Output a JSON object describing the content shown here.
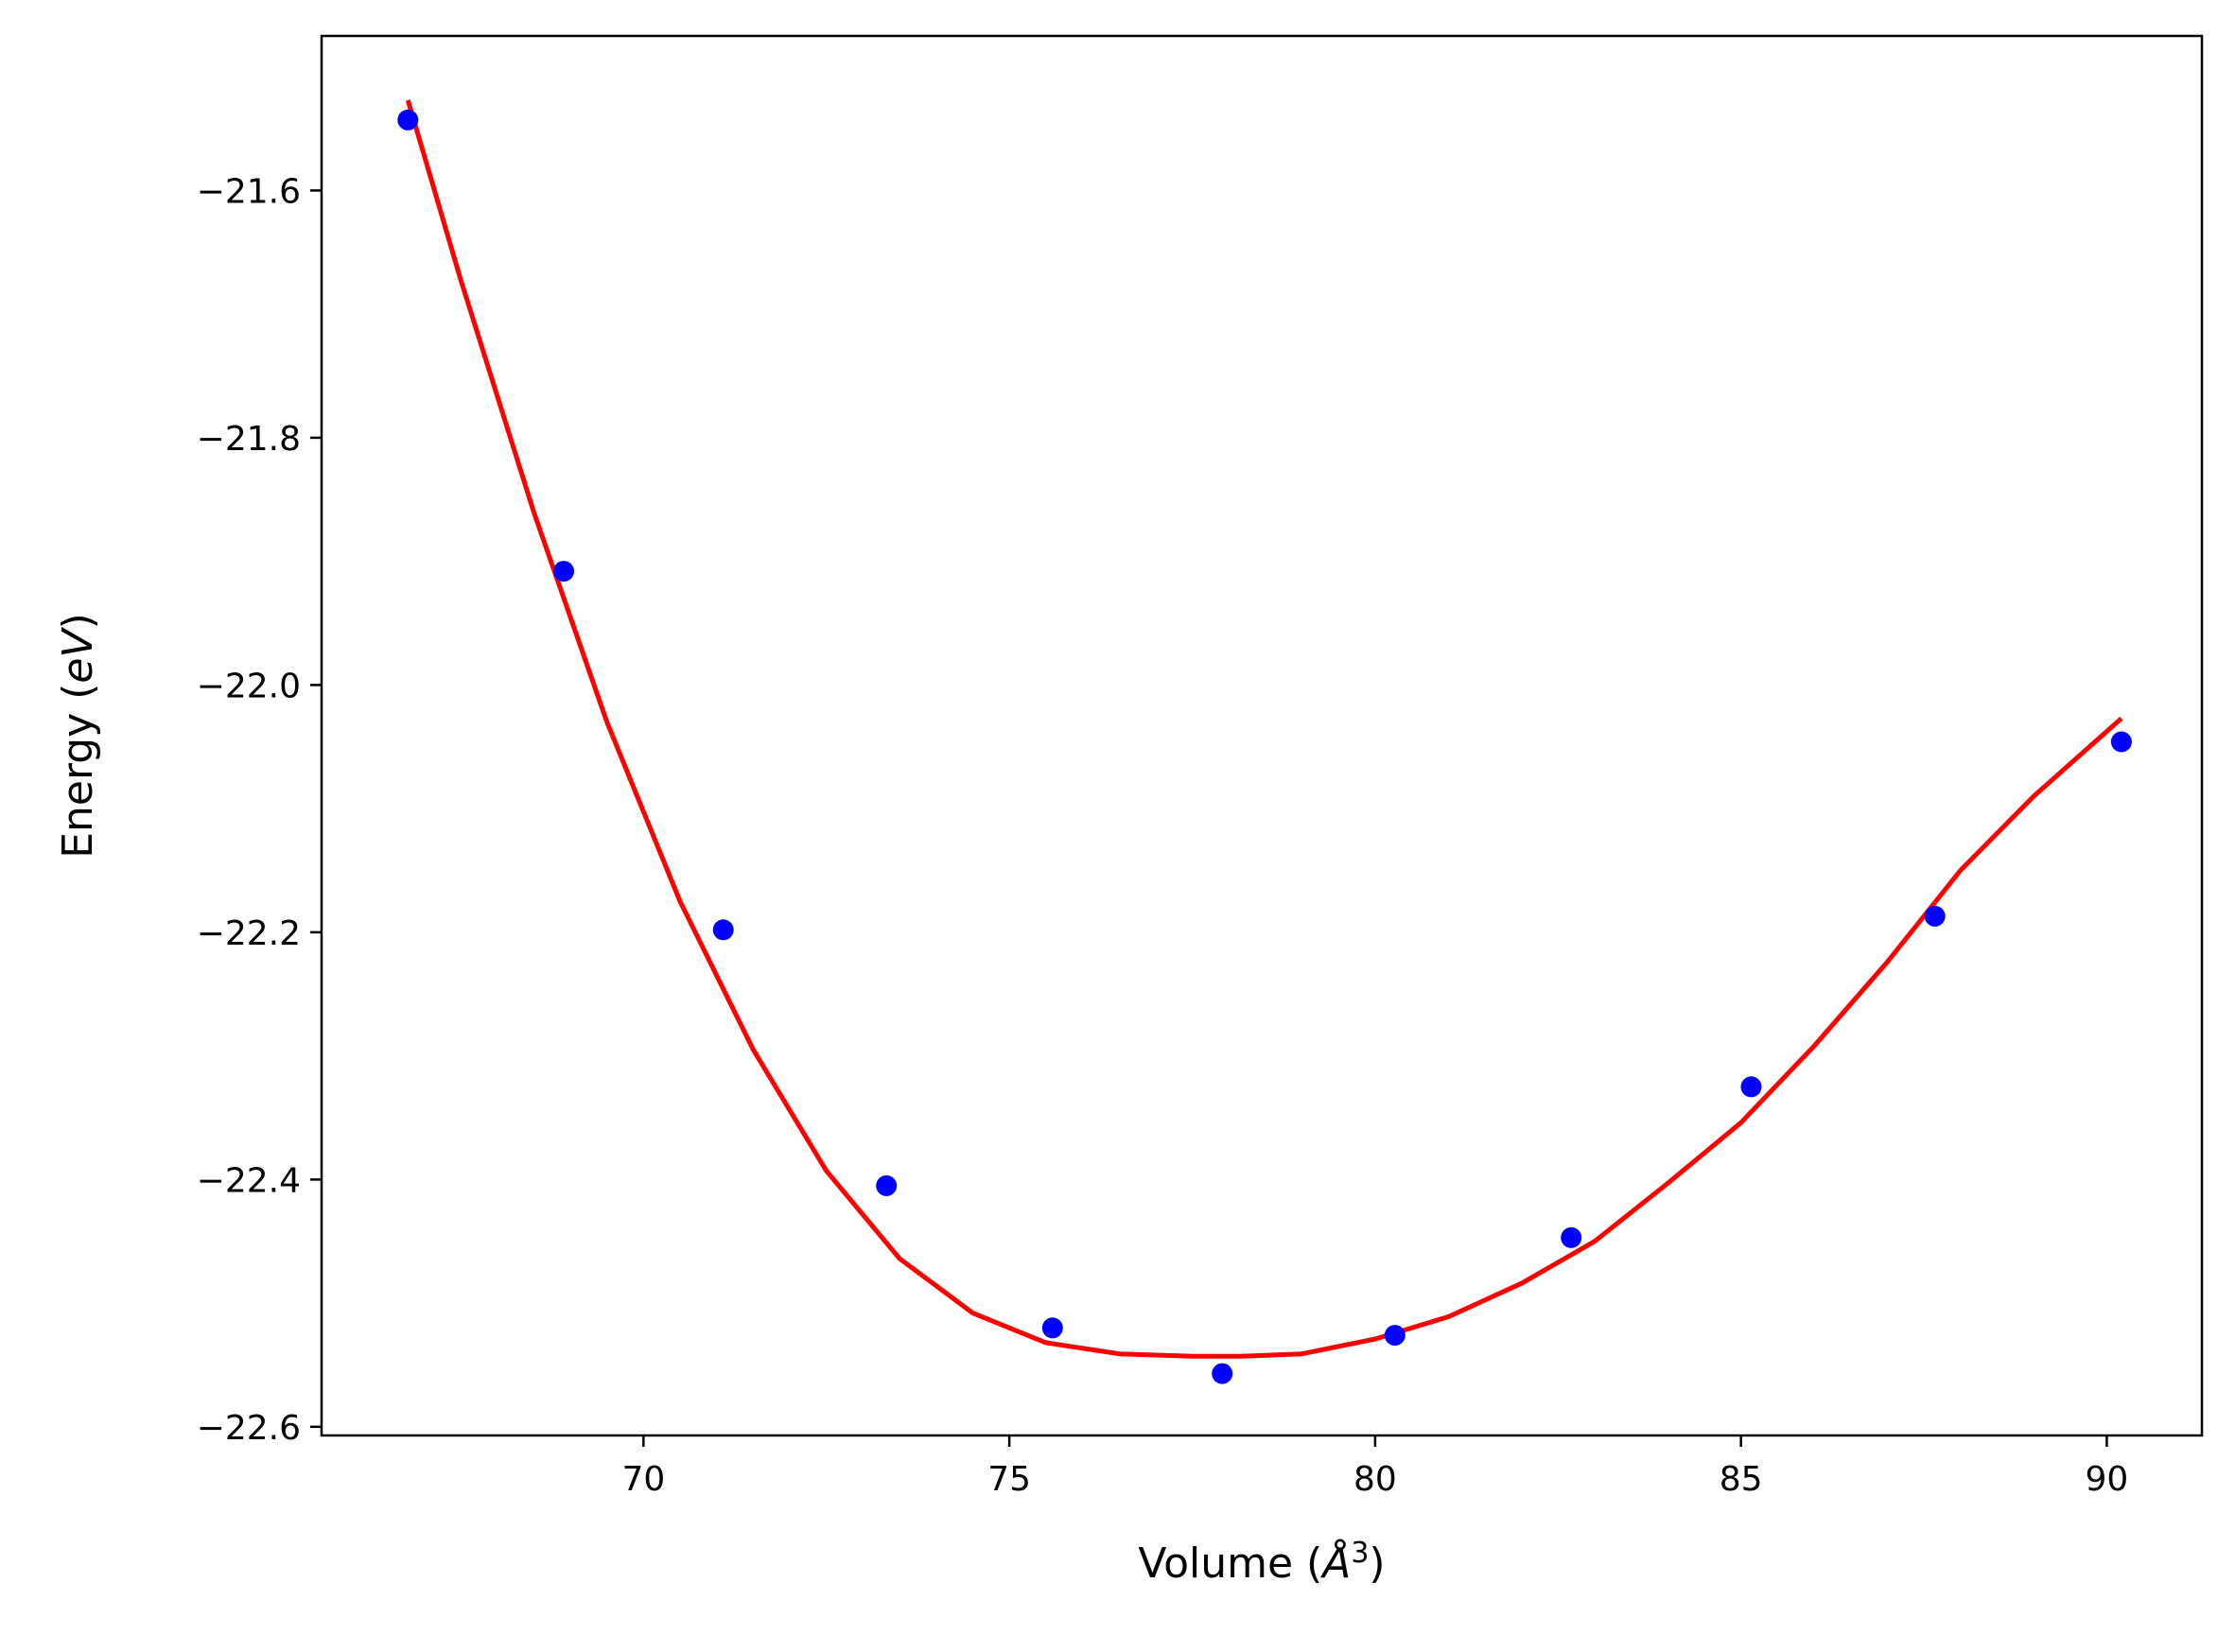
{
  "chart_data": {
    "type": "scatter",
    "xlabel_main": "Volume (",
    "xlabel_unit": "Å",
    "xlabel_sup": "3",
    "xlabel_close": ")",
    "ylabel_main": "Energy (",
    "ylabel_unit": "eV",
    "ylabel_close": ")",
    "xlim": [
      65.6,
      91.3
    ],
    "ylim": [
      -22.607,
      -21.475
    ],
    "xticks": [
      70,
      75,
      80,
      85,
      90
    ],
    "xtick_labels": [
      "70",
      "75",
      "80",
      "85",
      "90"
    ],
    "yticks": [
      -21.6,
      -21.8,
      -22.0,
      -22.2,
      -22.4,
      -22.6
    ],
    "ytick_labels": [
      "−21.6",
      "−21.8",
      "−22.0",
      "−22.2",
      "−22.4",
      "−22.6"
    ],
    "grid": false,
    "series": [
      {
        "kind": "points",
        "color": "#0000ff",
        "x": [
          66.78,
          68.91,
          71.09,
          73.32,
          75.59,
          77.91,
          80.27,
          82.68,
          85.14,
          87.65,
          90.2
        ],
        "y": [
          -21.543,
          -21.908,
          -22.198,
          -22.405,
          -22.52,
          -22.557,
          -22.526,
          -22.447,
          -22.325,
          -22.187,
          -22.046
        ]
      },
      {
        "kind": "fit-line",
        "color": "#ff0000",
        "x": [
          66.78,
          67.5,
          68.5,
          69.5,
          70.5,
          71.5,
          72.5,
          73.5,
          74.5,
          75.5,
          76.5,
          77.5,
          78.16,
          79.0,
          80.0,
          81.0,
          82.0,
          83.0,
          84.0,
          85.0,
          86.0,
          87.0,
          88.0,
          89.0,
          90.2
        ],
        "y": [
          -21.527,
          -21.672,
          -21.86,
          -22.03,
          -22.175,
          -22.295,
          -22.393,
          -22.464,
          -22.508,
          -22.532,
          -22.541,
          -22.543,
          -22.543,
          -22.541,
          -22.529,
          -22.511,
          -22.484,
          -22.45,
          -22.403,
          -22.354,
          -22.292,
          -22.224,
          -22.15,
          -22.09,
          -22.027
        ]
      }
    ]
  }
}
